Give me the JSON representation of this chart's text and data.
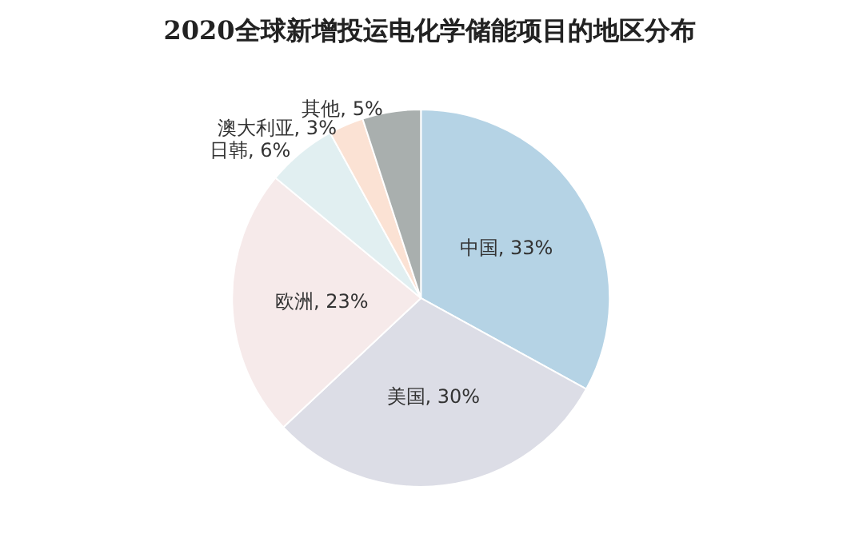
{
  "chart_data": {
    "type": "pie",
    "title": "2020全球新增投运电化学储能项目的地区分布",
    "categories": [
      "中国",
      "美国",
      "欧洲",
      "日韩",
      "澳大利亚",
      "其他"
    ],
    "values": [
      33,
      30,
      23,
      6,
      3,
      5
    ],
    "colors": [
      "#b5d3e5",
      "#dcdde6",
      "#f6eaea",
      "#e1eff1",
      "#fbe2d4",
      "#a9afae"
    ],
    "value_labels": [
      ", 33%",
      ", 30%",
      ", 23%",
      ", 6%",
      ", 3%",
      ", 5%"
    ],
    "legend": false
  }
}
